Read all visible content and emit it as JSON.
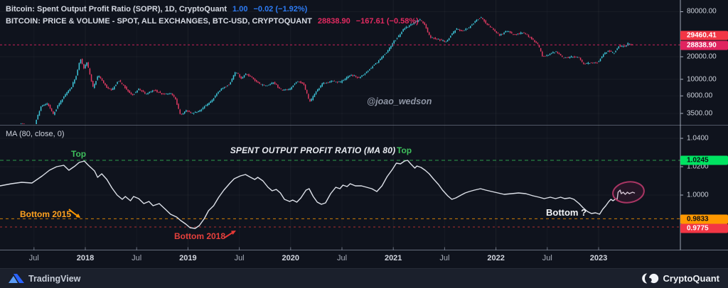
{
  "header": {
    "row1": {
      "label": "Bitcoin: Spent Output Profit Ratio (SOPR), 1D, CryptoQuant",
      "value": "1.00",
      "change": "−0.02 (−1.92%)"
    },
    "row2": {
      "label": "BITCOIN: PRICE & VOLUME - SPOT, ALL EXCHANGES, BTC-USD, CRYPTOQUANT",
      "value": "28838.90",
      "change": "−167.61 (−0.58%)"
    }
  },
  "indicator_label": "MA (80, close, 0)",
  "watermark": "@joao_wedson",
  "panel_title": "SPENT OUTPUT PROFIT RATIO (MA 80)",
  "annotations": {
    "top_left": "Top",
    "top_right": "Top",
    "bottom_2015": "Bottom 2015",
    "bottom_2018": "Bottom 2018",
    "bottom_question": "Bottom ?"
  },
  "price_scale": {
    "ticks": [
      {
        "label": "80000.00",
        "value": 80000
      },
      {
        "label": "20000.00",
        "value": 20000
      },
      {
        "label": "10000.00",
        "value": 10000
      },
      {
        "label": "6000.00",
        "value": 6000
      },
      {
        "label": "3500.00",
        "value": 3500
      }
    ],
    "badges": [
      {
        "label": "29460.41",
        "bg": "#f23645",
        "fg": "#ffffff"
      },
      {
        "label": "28838.90",
        "bg": "#e0235f",
        "fg": "#ffffff"
      }
    ]
  },
  "sopr_scale": {
    "ticks": [
      {
        "label": "1.0400",
        "value": 1.04
      },
      {
        "label": "1.0200",
        "value": 1.02
      },
      {
        "label": "1.0000",
        "value": 1.0
      }
    ],
    "badges": [
      {
        "label": "1.0245",
        "value": 1.0245,
        "bg": "#00e361",
        "fg": "#0b0e14"
      },
      {
        "label": "0.9833",
        "value": 0.9833,
        "bg": "#ff9800",
        "fg": "#0b0e14"
      },
      {
        "label": "0.9775",
        "value": 0.9775,
        "bg": "#f23645",
        "fg": "#ffffff"
      }
    ]
  },
  "time_axis": [
    {
      "label": "Jul",
      "t": 2017.5,
      "bold": false
    },
    {
      "label": "2018",
      "t": 2018.0,
      "bold": true
    },
    {
      "label": "Jul",
      "t": 2018.5,
      "bold": false
    },
    {
      "label": "2019",
      "t": 2019.0,
      "bold": true
    },
    {
      "label": "Jul",
      "t": 2019.5,
      "bold": false
    },
    {
      "label": "2020",
      "t": 2020.0,
      "bold": true
    },
    {
      "label": "Jul",
      "t": 2020.5,
      "bold": false
    },
    {
      "label": "2021",
      "t": 2021.0,
      "bold": true
    },
    {
      "label": "Jul",
      "t": 2021.5,
      "bold": false
    },
    {
      "label": "2022",
      "t": 2022.0,
      "bold": true
    },
    {
      "label": "Jul",
      "t": 2022.5,
      "bold": false
    },
    {
      "label": "2023",
      "t": 2023.0,
      "bold": true
    }
  ],
  "footer": {
    "tradingview": "TradingView",
    "cryptoquant": "CryptoQuant"
  },
  "colors": {
    "background": "#0f131d",
    "candle_up": "#3ec6da",
    "candle_down": "#e23a62",
    "sopr_line": "#dde1e9",
    "top_line": "#30ad50",
    "bottom2015_line": "#ff9800",
    "bottom2018_line": "#e53935",
    "last_price_line": "#e0235f",
    "ellipse": "#a93563"
  },
  "chart_data": [
    {
      "type": "candlestick",
      "name": "BTC-USD price",
      "yscale": "log",
      "last_price": 28838.9,
      "alt_price": 29460.41,
      "anchors": [
        [
          2017.3,
          1700
        ],
        [
          2017.38,
          2600
        ],
        [
          2017.44,
          2400
        ],
        [
          2017.5,
          2000
        ],
        [
          2017.58,
          4300
        ],
        [
          2017.65,
          4700
        ],
        [
          2017.7,
          3400
        ],
        [
          2017.76,
          4700
        ],
        [
          2017.83,
          6500
        ],
        [
          2017.88,
          8000
        ],
        [
          2017.93,
          11500
        ],
        [
          2017.965,
          19400
        ],
        [
          2018.0,
          14000
        ],
        [
          2018.03,
          16800
        ],
        [
          2018.09,
          7700
        ],
        [
          2018.14,
          11300
        ],
        [
          2018.22,
          7900
        ],
        [
          2018.27,
          7000
        ],
        [
          2018.34,
          9700
        ],
        [
          2018.42,
          7300
        ],
        [
          2018.47,
          6100
        ],
        [
          2018.54,
          7500
        ],
        [
          2018.6,
          6300
        ],
        [
          2018.68,
          7200
        ],
        [
          2018.76,
          6400
        ],
        [
          2018.85,
          6400
        ],
        [
          2018.89,
          5500
        ],
        [
          2018.94,
          3400
        ],
        [
          2019.0,
          3800
        ],
        [
          2019.06,
          3500
        ],
        [
          2019.14,
          3900
        ],
        [
          2019.24,
          5100
        ],
        [
          2019.33,
          7200
        ],
        [
          2019.42,
          8600
        ],
        [
          2019.48,
          12900
        ],
        [
          2019.53,
          10300
        ],
        [
          2019.58,
          11900
        ],
        [
          2019.65,
          10100
        ],
        [
          2019.72,
          8400
        ],
        [
          2019.8,
          8200
        ],
        [
          2019.85,
          9200
        ],
        [
          2019.91,
          7200
        ],
        [
          2020.0,
          7200
        ],
        [
          2020.08,
          9500
        ],
        [
          2020.14,
          8800
        ],
        [
          2020.2,
          4900
        ],
        [
          2020.26,
          6800
        ],
        [
          2020.33,
          8900
        ],
        [
          2020.42,
          9500
        ],
        [
          2020.5,
          9100
        ],
        [
          2020.6,
          11500
        ],
        [
          2020.68,
          10400
        ],
        [
          2020.78,
          13500
        ],
        [
          2020.88,
          18000
        ],
        [
          2020.96,
          24000
        ],
        [
          2021.02,
          32000
        ],
        [
          2021.07,
          38000
        ],
        [
          2021.12,
          48000
        ],
        [
          2021.17,
          52000
        ],
        [
          2021.22,
          58000
        ],
        [
          2021.27,
          63200
        ],
        [
          2021.32,
          54000
        ],
        [
          2021.37,
          37000
        ],
        [
          2021.45,
          34000
        ],
        [
          2021.53,
          31600
        ],
        [
          2021.58,
          40000
        ],
        [
          2021.63,
          47000
        ],
        [
          2021.68,
          44500
        ],
        [
          2021.75,
          49000
        ],
        [
          2021.82,
          61500
        ],
        [
          2021.87,
          67500
        ],
        [
          2021.93,
          53800
        ],
        [
          2021.99,
          46300
        ],
        [
          2022.05,
          38500
        ],
        [
          2022.12,
          44000
        ],
        [
          2022.2,
          39500
        ],
        [
          2022.28,
          42500
        ],
        [
          2022.35,
          36000
        ],
        [
          2022.42,
          29500
        ],
        [
          2022.47,
          20100
        ],
        [
          2022.53,
          21500
        ],
        [
          2022.6,
          23800
        ],
        [
          2022.67,
          19200
        ],
        [
          2022.75,
          20000
        ],
        [
          2022.82,
          19500
        ],
        [
          2022.87,
          15900
        ],
        [
          2022.93,
          16800
        ],
        [
          2023.0,
          16600
        ],
        [
          2023.06,
          21200
        ],
        [
          2023.11,
          24200
        ],
        [
          2023.16,
          22200
        ],
        [
          2023.21,
          28200
        ],
        [
          2023.26,
          27300
        ],
        [
          2023.3,
          29900
        ],
        [
          2023.35,
          28838.9
        ]
      ]
    },
    {
      "type": "line",
      "name": "SOPR MA 80",
      "levels": {
        "top": 1.0245,
        "bottom_2015": 0.9833,
        "bottom_2018": 0.9775
      },
      "points": [
        [
          2017.17,
          1.0065
        ],
        [
          2017.28,
          1.008
        ],
        [
          2017.38,
          1.009
        ],
        [
          2017.48,
          1.0085
        ],
        [
          2017.58,
          1.0135
        ],
        [
          2017.65,
          1.0175
        ],
        [
          2017.72,
          1.02
        ],
        [
          2017.79,
          1.021
        ],
        [
          2017.84,
          1.0175
        ],
        [
          2017.9,
          1.0205
        ],
        [
          2017.94,
          1.023
        ],
        [
          2017.99,
          1.024
        ],
        [
          2018.03,
          1.021
        ],
        [
          2018.09,
          1.017
        ],
        [
          2018.12,
          1.0125
        ],
        [
          2018.16,
          1.015
        ],
        [
          2018.21,
          1.011
        ],
        [
          2018.26,
          1.005
        ],
        [
          2018.31,
          1.0
        ],
        [
          2018.36,
          0.997
        ],
        [
          2018.39,
          0.999
        ],
        [
          2018.44,
          0.996
        ],
        [
          2018.47,
          0.999
        ],
        [
          2018.52,
          0.9975
        ],
        [
          2018.57,
          0.994
        ],
        [
          2018.62,
          0.9955
        ],
        [
          2018.66,
          0.9925
        ],
        [
          2018.72,
          0.994
        ],
        [
          2018.78,
          0.99
        ],
        [
          2018.83,
          0.9865
        ],
        [
          2018.89,
          0.9845
        ],
        [
          2018.93,
          0.982
        ],
        [
          2018.98,
          0.9795
        ],
        [
          2019.02,
          0.977
        ],
        [
          2019.07,
          0.9765
        ],
        [
          2019.11,
          0.9785
        ],
        [
          2019.16,
          0.9835
        ],
        [
          2019.2,
          0.989
        ],
        [
          2019.25,
          0.9925
        ],
        [
          2019.3,
          0.9985
        ],
        [
          2019.35,
          1.0035
        ],
        [
          2019.41,
          1.0085
        ],
        [
          2019.45,
          1.0115
        ],
        [
          2019.51,
          1.0135
        ],
        [
          2019.56,
          1.0145
        ],
        [
          2019.61,
          1.0125
        ],
        [
          2019.65,
          1.011
        ],
        [
          2019.68,
          1.0125
        ],
        [
          2019.73,
          1.01
        ],
        [
          2019.78,
          1.0055
        ],
        [
          2019.82,
          1.003
        ],
        [
          2019.86,
          1.004
        ],
        [
          2019.9,
          1.0015
        ],
        [
          2019.94,
          0.997
        ],
        [
          2019.99,
          0.9955
        ],
        [
          2020.02,
          0.9965
        ],
        [
          2020.06,
          0.995
        ],
        [
          2020.1,
          0.998
        ],
        [
          2020.15,
          1.0035
        ],
        [
          2020.18,
          1.0045
        ],
        [
          2020.22,
          0.999
        ],
        [
          2020.26,
          0.995
        ],
        [
          2020.3,
          0.9935
        ],
        [
          2020.34,
          0.9945
        ],
        [
          2020.39,
          1.001
        ],
        [
          2020.44,
          1.0055
        ],
        [
          2020.48,
          1.0045
        ],
        [
          2020.51,
          1.007
        ],
        [
          2020.55,
          1.006
        ],
        [
          2020.58,
          1.008
        ],
        [
          2020.63,
          1.0065
        ],
        [
          2020.69,
          1.0065
        ],
        [
          2020.74,
          1.0055
        ],
        [
          2020.79,
          1.0045
        ],
        [
          2020.84,
          1.0025
        ],
        [
          2020.89,
          1.0065
        ],
        [
          2020.94,
          1.013
        ],
        [
          2020.99,
          1.018
        ],
        [
          2021.03,
          1.0225
        ],
        [
          2021.07,
          1.022
        ],
        [
          2021.11,
          1.024
        ],
        [
          2021.14,
          1.0245
        ],
        [
          2021.17,
          1.022
        ],
        [
          2021.21,
          1.019
        ],
        [
          2021.23,
          1.0205
        ],
        [
          2021.27,
          1.0195
        ],
        [
          2021.31,
          1.0175
        ],
        [
          2021.35,
          1.015
        ],
        [
          2021.39,
          1.0115
        ],
        [
          2021.44,
          1.0075
        ],
        [
          2021.48,
          1.0035
        ],
        [
          2021.53,
          0.9995
        ],
        [
          2021.57,
          0.997
        ],
        [
          2021.61,
          0.998
        ],
        [
          2021.66,
          1.0
        ],
        [
          2021.7,
          1.0015
        ],
        [
          2021.74,
          1.0025
        ],
        [
          2021.79,
          1.0035
        ],
        [
          2021.85,
          1.0045
        ],
        [
          2021.9,
          1.0035
        ],
        [
          2021.96,
          1.0025
        ],
        [
          2022.02,
          1.0015
        ],
        [
          2022.08,
          1.0005
        ],
        [
          2022.15,
          1.001
        ],
        [
          2022.22,
          1.0015
        ],
        [
          2022.29,
          1.001
        ],
        [
          2022.36,
          0.9995
        ],
        [
          2022.42,
          0.9985
        ],
        [
          2022.47,
          0.9975
        ],
        [
          2022.53,
          0.9985
        ],
        [
          2022.58,
          0.9975
        ],
        [
          2022.63,
          0.9985
        ],
        [
          2022.67,
          0.9975
        ],
        [
          2022.72,
          0.998
        ],
        [
          2022.76,
          0.997
        ],
        [
          2022.81,
          0.994
        ],
        [
          2022.85,
          0.991
        ],
        [
          2022.89,
          0.9885
        ],
        [
          2022.93,
          0.987
        ],
        [
          2022.97,
          0.9875
        ],
        [
          2023.01,
          0.9865
        ],
        [
          2023.04,
          0.99
        ],
        [
          2023.07,
          0.9925
        ],
        [
          2023.1,
          0.9955
        ],
        [
          2023.12,
          0.997
        ],
        [
          2023.14,
          0.996
        ],
        [
          2023.17,
          0.9975
        ],
        [
          2023.18,
          0.9965
        ],
        [
          2023.19,
          1.002
        ],
        [
          2023.21,
          1.0035
        ],
        [
          2023.22,
          1.001
        ],
        [
          2023.24,
          1.002
        ],
        [
          2023.26,
          1.0005
        ],
        [
          2023.28,
          1.002
        ],
        [
          2023.3,
          1.001
        ],
        [
          2023.33,
          1.002
        ],
        [
          2023.35,
          1.0015
        ]
      ]
    }
  ]
}
